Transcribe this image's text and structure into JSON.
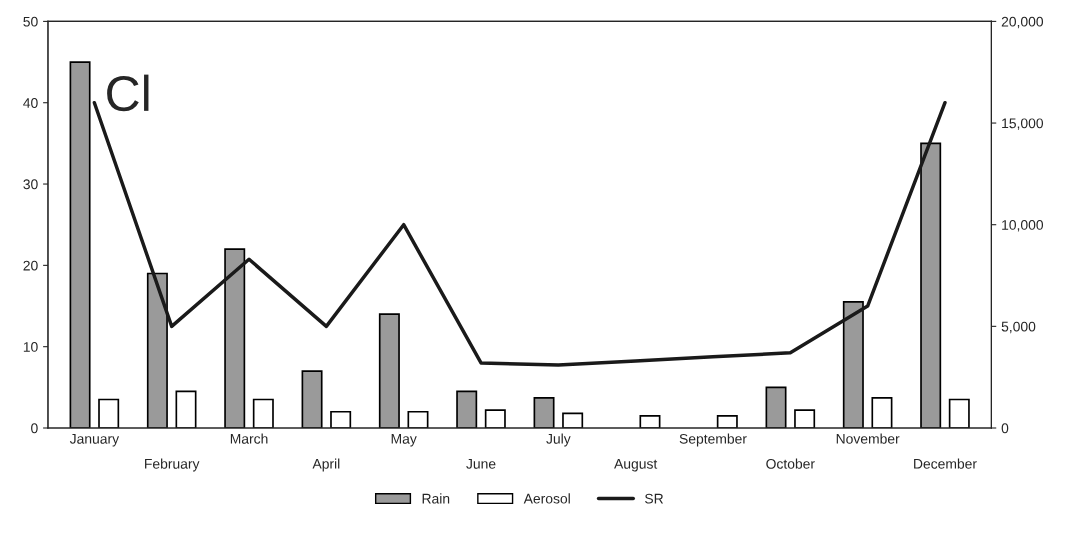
{
  "chart_data": {
    "type": "bar",
    "categories": [
      "January",
      "February",
      "March",
      "April",
      "May",
      "June",
      "July",
      "August",
      "September",
      "October",
      "November",
      "December"
    ],
    "series": [
      {
        "name": "Rain",
        "color": "#9a9a9a",
        "values": [
          45,
          19,
          22,
          7,
          14,
          4.5,
          3.7,
          null,
          null,
          5,
          15.5,
          35
        ]
      },
      {
        "name": "Aerosol",
        "color": "#ffffff",
        "values": [
          3.5,
          4.5,
          3.5,
          2,
          2,
          2.2,
          1.8,
          1.5,
          1.5,
          2.2,
          3.7,
          3.5
        ]
      },
      {
        "name": "SR",
        "type": "line",
        "axis": "y2",
        "color": "#1a1a1a",
        "values": [
          16000,
          5000,
          8300,
          5000,
          10000,
          3200,
          3100,
          3300,
          3500,
          3700,
          6000,
          16000
        ]
      }
    ],
    "ylim": [
      0,
      50
    ],
    "yticks": [
      0,
      10,
      20,
      30,
      40,
      50
    ],
    "y2lim": [
      0,
      20000
    ],
    "y2ticks": [
      {
        "value": 0,
        "label": "0"
      },
      {
        "value": 5000,
        "label": "5,000"
      },
      {
        "value": 10000,
        "label": "10,000"
      },
      {
        "value": 15000,
        "label": "15,000"
      },
      {
        "value": 20000,
        "label": "20,000"
      }
    ],
    "annotations": [
      "Cl"
    ],
    "legend": "bottom",
    "grid": false,
    "marker": "none",
    "line_style": "solid"
  }
}
